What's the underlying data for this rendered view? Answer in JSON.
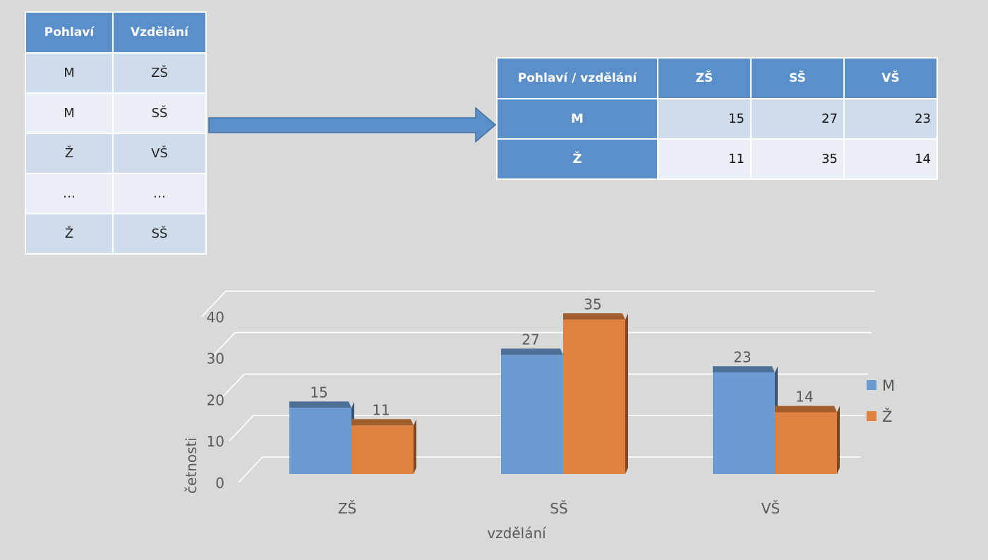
{
  "raw_table": {
    "headers": [
      "Pohlaví",
      "Vzdělání"
    ],
    "rows": [
      [
        "M",
        "ZŠ"
      ],
      [
        "M",
        "SŠ"
      ],
      [
        "Ž",
        "VŠ"
      ],
      [
        "…",
        "…"
      ],
      [
        "Ž",
        "SŠ"
      ]
    ]
  },
  "cross_table": {
    "corner": "Pohlaví / vzdělání",
    "columns": [
      "ZŠ",
      "SŠ",
      "VŠ"
    ],
    "rows": [
      {
        "label": "M",
        "values": [
          "15",
          "27",
          "23"
        ]
      },
      {
        "label": "Ž",
        "values": [
          "11",
          "35",
          "14"
        ]
      }
    ]
  },
  "chart_data": {
    "type": "bar",
    "categories": [
      "ZŠ",
      "SŠ",
      "VŠ"
    ],
    "series": [
      {
        "name": "M",
        "values": [
          15,
          27,
          23
        ],
        "color": "#6a9bd3"
      },
      {
        "name": "Ž",
        "values": [
          11,
          35,
          14
        ],
        "color": "#e0823f"
      }
    ],
    "xlabel": "vzdělání",
    "ylabel": "četnosti",
    "ylim": [
      0,
      40
    ],
    "yticks": [
      0,
      10,
      20,
      30,
      40
    ],
    "grid": true,
    "legend": "right"
  }
}
